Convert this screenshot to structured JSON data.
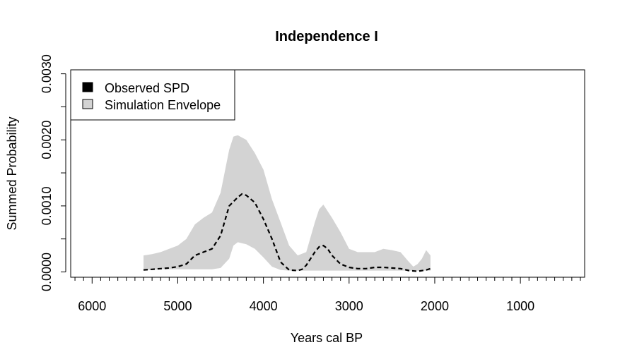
{
  "chart_data": {
    "type": "area",
    "title": "Independence I",
    "xlabel": "Years cal BP",
    "ylabel": "Summed Probability",
    "xlim": [
      6250,
      250
    ],
    "ylim": [
      -8e-05,
      0.00306
    ],
    "x_reversed": true,
    "x_ticks": [
      6000,
      5000,
      4000,
      3000,
      2000,
      1000
    ],
    "x_tick_labels": [
      "6000",
      "5000",
      "4000",
      "3000",
      "2000",
      "1000"
    ],
    "x_minor_tick_step": 100,
    "y_ticks": [
      0,
      0.0005,
      0.001,
      0.0015,
      0.002,
      0.0025,
      0.003
    ],
    "y_tick_labels": [
      "0.0000",
      "",
      "0.0010",
      "",
      "0.0020",
      "",
      "0.0030"
    ],
    "grid": false,
    "legend": {
      "position": "top-left",
      "entries": [
        {
          "label": "Observed SPD",
          "color": "#000000"
        },
        {
          "label": "Simulation Envelope",
          "color": "#d3d3d3"
        }
      ]
    },
    "colors": {
      "envelope": "#d3d3d3",
      "observed": "#000000"
    },
    "series": [
      {
        "name": "Simulation Envelope",
        "kind": "band",
        "x": [
          5400,
          5300,
          5200,
          5100,
          5000,
          4900,
          4800,
          4700,
          4600,
          4500,
          4400,
          4350,
          4300,
          4200,
          4100,
          4000,
          3900,
          3800,
          3700,
          3600,
          3500,
          3400,
          3350,
          3300,
          3200,
          3100,
          3000,
          2900,
          2800,
          2700,
          2600,
          2500,
          2400,
          2300,
          2250,
          2200,
          2150,
          2100,
          2050
        ],
        "lower": [
          3e-05,
          3e-05,
          4e-05,
          4e-05,
          4e-05,
          4e-05,
          4e-05,
          4e-05,
          4e-05,
          6e-05,
          0.0002,
          0.0004,
          0.00045,
          0.00042,
          0.00035,
          0.00022,
          8e-05,
          3e-05,
          2e-05,
          2e-05,
          2e-05,
          2e-05,
          2e-05,
          2e-05,
          2e-05,
          2e-05,
          2e-05,
          2e-05,
          2e-05,
          2e-05,
          2e-05,
          2e-05,
          2e-05,
          2e-05,
          2e-05,
          2e-05,
          2e-05,
          2e-05,
          2e-05
        ],
        "upper": [
          0.00025,
          0.00027,
          0.0003,
          0.00035,
          0.0004,
          0.0005,
          0.00072,
          0.00082,
          0.0009,
          0.0012,
          0.00185,
          0.00205,
          0.00207,
          0.002,
          0.0018,
          0.00155,
          0.0011,
          0.00075,
          0.0004,
          0.00025,
          0.0003,
          0.00075,
          0.00095,
          0.00102,
          0.00082,
          0.0006,
          0.00035,
          0.0003,
          0.0003,
          0.0003,
          0.00035,
          0.00033,
          0.0003,
          0.00015,
          8e-05,
          0.00012,
          0.0002,
          0.00033,
          0.00025
        ]
      },
      {
        "name": "Observed SPD",
        "kind": "line",
        "dash": true,
        "x": [
          5400,
          5300,
          5200,
          5100,
          5000,
          4900,
          4800,
          4700,
          4600,
          4500,
          4400,
          4300,
          4250,
          4200,
          4100,
          4000,
          3900,
          3800,
          3700,
          3600,
          3550,
          3500,
          3400,
          3350,
          3300,
          3250,
          3200,
          3100,
          3000,
          2900,
          2800,
          2700,
          2600,
          2500,
          2400,
          2300,
          2200,
          2100,
          2050
        ],
        "y": [
          3e-05,
          4e-05,
          5e-05,
          6e-05,
          8e-05,
          0.00012,
          0.00025,
          0.0003,
          0.00035,
          0.00055,
          0.001,
          0.00113,
          0.00118,
          0.00116,
          0.00105,
          0.0008,
          0.0005,
          0.00015,
          3e-05,
          2e-05,
          4e-05,
          0.0001,
          0.0003,
          0.00038,
          0.0004,
          0.00035,
          0.00025,
          0.00012,
          7e-05,
          5e-05,
          5e-05,
          7e-05,
          7e-05,
          6e-05,
          5e-05,
          2e-05,
          1e-05,
          3e-05,
          5e-05
        ]
      }
    ]
  }
}
